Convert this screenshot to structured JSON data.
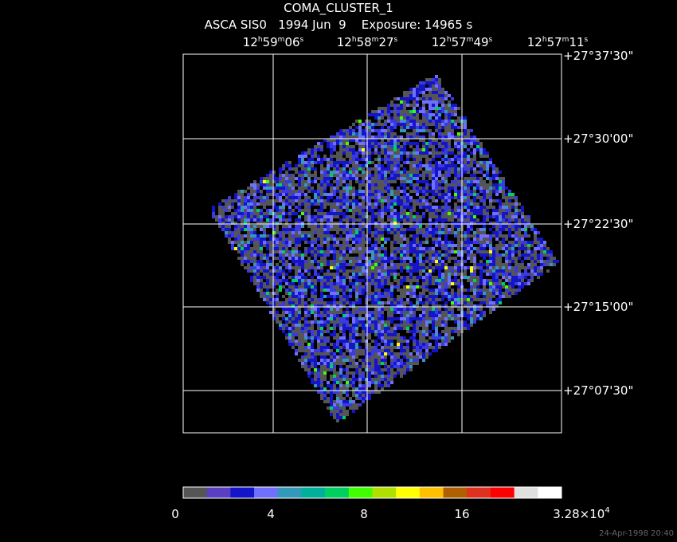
{
  "header": {
    "title": "COMA_CLUSTER_1",
    "subtitle": "ASCA SIS0   1994 Jun  9    Exposure: 14965 s"
  },
  "ra_labels": [
    [
      "12",
      "h",
      "59",
      "m",
      "06",
      "s"
    ],
    [
      "12",
      "h",
      "58",
      "m",
      "27",
      "s"
    ],
    [
      "12",
      "h",
      "57",
      "m",
      "49",
      "s"
    ],
    [
      "12",
      "h",
      "57",
      "m",
      "11",
      "s"
    ]
  ],
  "dec_labels": [
    "+27°37'30\"",
    "+27°30'00\"",
    "+27°22'30\"",
    "+27°15'00\"",
    "+27°07'30\""
  ],
  "colorbar": {
    "colors": [
      "#555555",
      "#5a3fc0",
      "#1414c8",
      "#7070ff",
      "#3399bb",
      "#00b09a",
      "#00d060",
      "#40ff00",
      "#b0e000",
      "#ffff00",
      "#ffc000",
      "#b06000",
      "#e03020",
      "#ff0000",
      "#e0e0e0",
      "#ffffff"
    ],
    "labels": [
      "0",
      "4",
      "8",
      "16"
    ],
    "max_label": [
      "3.28×10",
      "4"
    ]
  },
  "footer": {
    "timestamp": "24-Apr-1998 20:40"
  }
}
